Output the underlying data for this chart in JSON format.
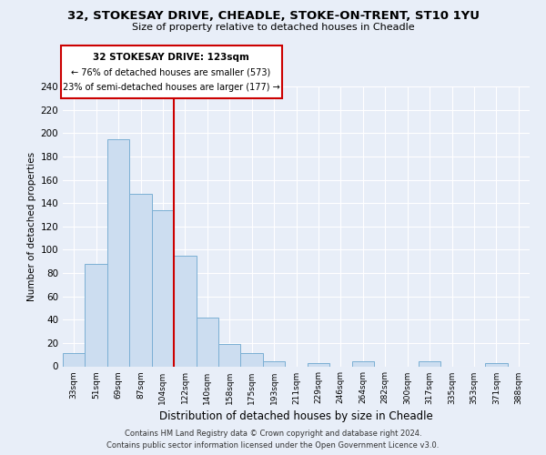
{
  "title": "32, STOKESAY DRIVE, CHEADLE, STOKE-ON-TRENT, ST10 1YU",
  "subtitle": "Size of property relative to detached houses in Cheadle",
  "xlabel": "Distribution of detached houses by size in Cheadle",
  "ylabel": "Number of detached properties",
  "bin_labels": [
    "33sqm",
    "51sqm",
    "69sqm",
    "87sqm",
    "104sqm",
    "122sqm",
    "140sqm",
    "158sqm",
    "175sqm",
    "193sqm",
    "211sqm",
    "229sqm",
    "246sqm",
    "264sqm",
    "282sqm",
    "300sqm",
    "317sqm",
    "335sqm",
    "353sqm",
    "371sqm",
    "388sqm"
  ],
  "bar_heights": [
    11,
    88,
    195,
    148,
    134,
    95,
    42,
    19,
    11,
    4,
    0,
    3,
    0,
    4,
    0,
    0,
    4,
    0,
    0,
    3,
    0
  ],
  "bar_color": "#ccddf0",
  "bar_edge_color": "#7bafd4",
  "property_line_x": 5,
  "property_line_label": "32 STOKESAY DRIVE: 123sqm",
  "annotation_line1": "← 76% of detached houses are smaller (573)",
  "annotation_line2": "23% of semi-detached houses are larger (177) →",
  "annotation_box_color": "#ffffff",
  "annotation_box_edge": "#cc0000",
  "property_line_color": "#cc0000",
  "ylim": [
    0,
    240
  ],
  "yticks": [
    0,
    20,
    40,
    60,
    80,
    100,
    120,
    140,
    160,
    180,
    200,
    220,
    240
  ],
  "footer_line1": "Contains HM Land Registry data © Crown copyright and database right 2024.",
  "footer_line2": "Contains public sector information licensed under the Open Government Licence v3.0.",
  "bg_color": "#e8eef8",
  "plot_bg_color": "#e8eef8",
  "grid_color": "#ffffff"
}
